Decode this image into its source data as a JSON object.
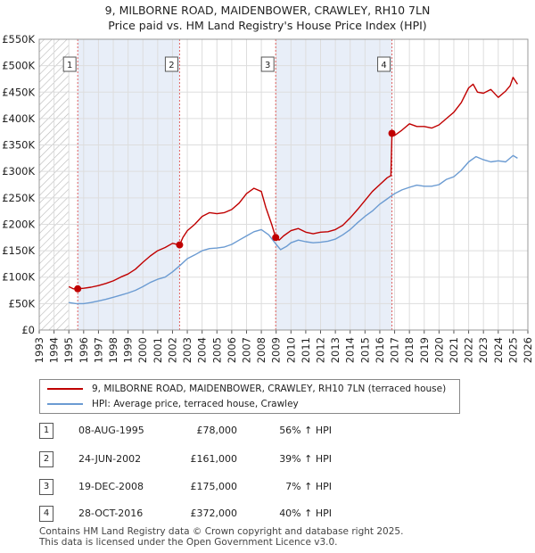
{
  "header": {
    "title_line1": "9, MILBORNE ROAD, MAIDENBOWER, CRAWLEY, RH10 7LN",
    "title_line2": "Price paid vs. HM Land Registry's House Price Index (HPI)"
  },
  "legend": {
    "property_label": "9, MILBORNE ROAD, MAIDENBOWER, CRAWLEY, RH10 7LN (terraced house)",
    "hpi_label": "HPI: Average price, terraced house, Crawley"
  },
  "sales": [
    {
      "num": "1",
      "date": "08-AUG-1995",
      "price": "£78,000",
      "hpi_change": "56% ↑ HPI"
    },
    {
      "num": "2",
      "date": "24-JUN-2002",
      "price": "£161,000",
      "hpi_change": "39% ↑ HPI"
    },
    {
      "num": "3",
      "date": "19-DEC-2008",
      "price": "£175,000",
      "hpi_change": "7% ↑ HPI"
    },
    {
      "num": "4",
      "date": "28-OCT-2016",
      "price": "£372,000",
      "hpi_change": "40% ↑ HPI"
    }
  ],
  "footer": {
    "line1": "Contains HM Land Registry data © Crown copyright and database right 2025.",
    "line2": "This data is licensed under the Open Government Licence v3.0."
  },
  "chart_data": {
    "type": "line",
    "title": "9, MILBORNE ROAD, MAIDENBOWER, CRAWLEY, RH10 7LN",
    "subtitle": "Price paid vs. HM Land Registry's House Price Index (HPI)",
    "xlabel": "",
    "ylabel": "",
    "xlim": [
      1993,
      2026
    ],
    "ylim": [
      0,
      550000
    ],
    "x_ticks": [
      "1993",
      "1994",
      "1995",
      "1996",
      "1997",
      "1998",
      "1999",
      "2000",
      "2001",
      "2002",
      "2003",
      "2004",
      "2005",
      "2006",
      "2007",
      "2008",
      "2009",
      "2010",
      "2011",
      "2012",
      "2013",
      "2014",
      "2015",
      "2016",
      "2017",
      "2018",
      "2019",
      "2020",
      "2021",
      "2022",
      "2023",
      "2024",
      "2025",
      "2026"
    ],
    "y_ticks": [
      {
        "value": 0,
        "label": "£0"
      },
      {
        "value": 50000,
        "label": "£50K"
      },
      {
        "value": 100000,
        "label": "£100K"
      },
      {
        "value": 150000,
        "label": "£150K"
      },
      {
        "value": 200000,
        "label": "£200K"
      },
      {
        "value": 250000,
        "label": "£250K"
      },
      {
        "value": 300000,
        "label": "£300K"
      },
      {
        "value": 350000,
        "label": "£350K"
      },
      {
        "value": 400000,
        "label": "£400K"
      },
      {
        "value": 450000,
        "label": "£450K"
      },
      {
        "value": 500000,
        "label": "£500K"
      },
      {
        "value": 550000,
        "label": "£550K"
      }
    ],
    "hatched_before": 1995,
    "grid": true,
    "series": [
      {
        "name": "9, MILBORNE ROAD, MAIDENBOWER, CRAWLEY, RH10 7LN (terraced house)",
        "color": "#c00000",
        "x": [
          1995.0,
          1995.3,
          1995.6,
          1996.0,
          1996.5,
          1997.0,
          1997.5,
          1998.0,
          1998.5,
          1999.0,
          1999.5,
          2000.0,
          2000.5,
          2001.0,
          2001.5,
          2002.0,
          2002.48,
          2002.7,
          2003.0,
          2003.5,
          2004.0,
          2004.5,
          2005.0,
          2005.5,
          2006.0,
          2006.5,
          2007.0,
          2007.5,
          2008.0,
          2008.3,
          2008.7,
          2008.97,
          2009.2,
          2009.5,
          2010.0,
          2010.5,
          2011.0,
          2011.5,
          2012.0,
          2012.5,
          2013.0,
          2013.5,
          2014.0,
          2014.5,
          2015.0,
          2015.5,
          2016.0,
          2016.5,
          2016.75,
          2016.82,
          2017.0,
          2017.5,
          2018.0,
          2018.5,
          2019.0,
          2019.5,
          2020.0,
          2020.5,
          2021.0,
          2021.5,
          2022.0,
          2022.3,
          2022.6,
          2023.0,
          2023.5,
          2024.0,
          2024.5,
          2024.8,
          2025.0,
          2025.3
        ],
        "y": [
          82000,
          78000,
          78000,
          79000,
          81000,
          84000,
          88000,
          93000,
          100000,
          106000,
          115000,
          128000,
          140000,
          150000,
          156000,
          164000,
          161000,
          175000,
          188000,
          200000,
          215000,
          222000,
          220000,
          222000,
          228000,
          240000,
          258000,
          268000,
          262000,
          232000,
          200000,
          175000,
          170000,
          178000,
          188000,
          192000,
          185000,
          182000,
          185000,
          186000,
          190000,
          198000,
          212000,
          228000,
          245000,
          262000,
          275000,
          288000,
          292000,
          372000,
          368000,
          378000,
          390000,
          385000,
          385000,
          382000,
          388000,
          400000,
          412000,
          430000,
          458000,
          465000,
          450000,
          448000,
          455000,
          440000,
          452000,
          462000,
          478000,
          465000
        ]
      },
      {
        "name": "HPI: Average price, terraced house, Crawley",
        "color": "#6b9bd2",
        "x": [
          1995.0,
          1995.5,
          1996.0,
          1996.5,
          1997.0,
          1997.5,
          1998.0,
          1998.5,
          1999.0,
          1999.5,
          2000.0,
          2000.5,
          2001.0,
          2001.5,
          2002.0,
          2002.5,
          2003.0,
          2003.5,
          2004.0,
          2004.5,
          2005.0,
          2005.5,
          2006.0,
          2006.5,
          2007.0,
          2007.5,
          2008.0,
          2008.5,
          2009.0,
          2009.3,
          2009.7,
          2010.0,
          2010.5,
          2011.0,
          2011.5,
          2012.0,
          2012.5,
          2013.0,
          2013.5,
          2014.0,
          2014.5,
          2015.0,
          2015.5,
          2016.0,
          2016.5,
          2017.0,
          2017.5,
          2018.0,
          2018.5,
          2019.0,
          2019.5,
          2020.0,
          2020.5,
          2021.0,
          2021.5,
          2022.0,
          2022.5,
          2023.0,
          2023.5,
          2024.0,
          2024.5,
          2025.0,
          2025.3
        ],
        "y": [
          52000,
          50000,
          50000,
          52000,
          55000,
          58000,
          62000,
          66000,
          70000,
          75000,
          82000,
          90000,
          96000,
          100000,
          110000,
          122000,
          135000,
          142000,
          150000,
          154000,
          155000,
          157000,
          162000,
          170000,
          178000,
          186000,
          190000,
          180000,
          162000,
          152000,
          158000,
          165000,
          170000,
          167000,
          165000,
          166000,
          168000,
          172000,
          180000,
          190000,
          203000,
          215000,
          225000,
          238000,
          248000,
          258000,
          265000,
          270000,
          274000,
          272000,
          272000,
          275000,
          285000,
          290000,
          302000,
          318000,
          328000,
          322000,
          318000,
          320000,
          318000,
          330000,
          325000
        ]
      }
    ],
    "sales": [
      {
        "label": "1",
        "x": 1995.6,
        "y": 78000
      },
      {
        "label": "2",
        "x": 2002.48,
        "y": 161000
      },
      {
        "label": "3",
        "x": 2008.97,
        "y": 175000
      },
      {
        "label": "4",
        "x": 2016.82,
        "y": 372000
      }
    ]
  }
}
